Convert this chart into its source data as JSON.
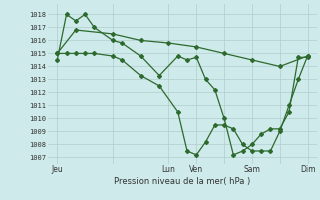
{
  "background_color": "#ceeaea",
  "grid_color": "#b0cccc",
  "line_color": "#2d6a2d",
  "ylim": [
    1006.5,
    1018.8
  ],
  "yticks": [
    1007,
    1008,
    1009,
    1010,
    1011,
    1012,
    1013,
    1014,
    1015,
    1016,
    1017,
    1018
  ],
  "xtick_labels": [
    "Jeu",
    "",
    "Lun",
    "Ven",
    "",
    "Sam",
    "",
    "Dim"
  ],
  "xtick_positions": [
    0,
    24,
    48,
    60,
    72,
    84,
    96,
    108
  ],
  "xlim": [
    -4,
    112
  ],
  "xlabel": "Pression niveau de la mer( hPa )",
  "series1_x": [
    0,
    4,
    8,
    12,
    16,
    24,
    28,
    36,
    44,
    52,
    56,
    60,
    64,
    68,
    72,
    76,
    80,
    84,
    88,
    92,
    96,
    100,
    104,
    108
  ],
  "series1_y": [
    1014.5,
    1018.0,
    1017.5,
    1018.0,
    1017.0,
    1016.0,
    1015.8,
    1014.8,
    1013.3,
    1014.8,
    1014.5,
    1014.7,
    1013.0,
    1012.2,
    1010.0,
    1007.2,
    1007.5,
    1008.0,
    1008.8,
    1009.2,
    1009.2,
    1010.5,
    1014.7,
    1014.7
  ],
  "series2_x": [
    0,
    4,
    8,
    12,
    16,
    24,
    28,
    36,
    44,
    52,
    56,
    60,
    64,
    68,
    72,
    76,
    80,
    84,
    88,
    92,
    96,
    100,
    104,
    108
  ],
  "series2_y": [
    1015.0,
    1015.0,
    1015.0,
    1015.0,
    1015.0,
    1014.8,
    1014.5,
    1013.3,
    1012.5,
    1010.5,
    1007.5,
    1007.2,
    1008.2,
    1009.5,
    1009.5,
    1009.2,
    1008.0,
    1007.5,
    1007.5,
    1007.5,
    1009.0,
    1011.0,
    1013.0,
    1014.8
  ],
  "series3_x": [
    0,
    8,
    24,
    36,
    48,
    60,
    72,
    84,
    96,
    108
  ],
  "series3_y": [
    1015.0,
    1016.8,
    1016.5,
    1016.0,
    1015.8,
    1015.5,
    1015.0,
    1014.5,
    1014.0,
    1014.8
  ],
  "marker": "D",
  "markersize": 2.0,
  "linewidth": 0.9,
  "figsize": [
    3.2,
    2.0
  ],
  "dpi": 100
}
